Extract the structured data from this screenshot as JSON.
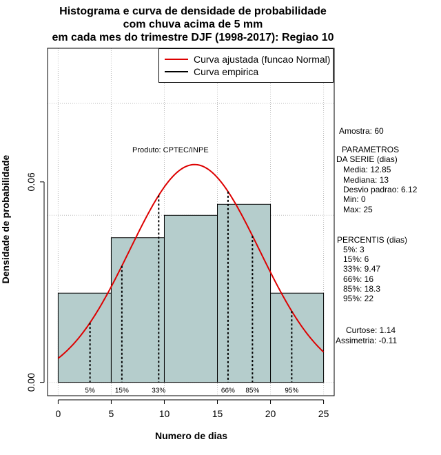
{
  "title": {
    "line1": "Histograma e curva de densidade de probabilidade",
    "line2": "com chuva acima de 5 mm",
    "line3": "em cada mes do trimestre DJF (1998-2017): Regiao 10"
  },
  "colors": {
    "bar_fill": "#b5cdcc",
    "normal_curve": "#dd0000",
    "empirical": "#000000",
    "grid": "#bbbbbb"
  },
  "legend": {
    "normal": "Curva ajustada (funcao Normal)",
    "empirical": "Curva empirica"
  },
  "credit": "Produto: CPTEC/INPE",
  "stats": {
    "amostra": "Amostra: 60",
    "parametros_title": "PARAMETROS",
    "serie_title": "DA SERIE (dias)",
    "media": "Media: 12.85",
    "mediana": "Mediana: 13",
    "desvio": "Desvio padrao: 6.12",
    "min": "Min: 0",
    "max": "Max: 25",
    "percentis_title": "PERCENTIS (dias)",
    "p5": "5%: 3",
    "p15": "15%: 6",
    "p33": "33%: 9.47",
    "p66": "66%: 16",
    "p85": "85%: 18.3",
    "p95": "95%: 22",
    "curtose": "Curtose: 1.14",
    "assimetria": "Assimetria: -0.11"
  },
  "chart_data": {
    "type": "bar",
    "title": "Histograma e curva de densidade de probabilidade com chuva acima de 5 mm em cada mes do trimestre DJF (1998-2017): Regiao 10",
    "xlabel": "Numero de dias",
    "ylabel": "Densidade de probabilidade",
    "xlim": [
      -1,
      26
    ],
    "ylim": [
      -0.004,
      0.1
    ],
    "x_ticks": [
      0,
      5,
      10,
      15,
      20,
      25
    ],
    "x_tick_labels": [
      "0",
      "5",
      "10",
      "15",
      "20",
      "25"
    ],
    "y_ticks": [
      0.0,
      0.06
    ],
    "y_tick_labels": [
      "0.00",
      "0.06"
    ],
    "bins": [
      {
        "from": 0,
        "to": 5,
        "density": 0.0267
      },
      {
        "from": 5,
        "to": 10,
        "density": 0.0433
      },
      {
        "from": 10,
        "to": 15,
        "density": 0.05
      },
      {
        "from": 15,
        "to": 20,
        "density": 0.0533
      },
      {
        "from": 20,
        "to": 25,
        "density": 0.0267
      }
    ],
    "normal_curve": {
      "mean": 12.85,
      "sd": 6.12,
      "from": 0,
      "to": 25
    },
    "percentiles": [
      {
        "label": "5%",
        "value": 3
      },
      {
        "label": "15%",
        "value": 6
      },
      {
        "label": "33%",
        "value": 9.47
      },
      {
        "label": "66%",
        "value": 16
      },
      {
        "label": "85%",
        "value": 18.3
      },
      {
        "label": "95%",
        "value": 22
      }
    ],
    "grid": true,
    "legend_position": "top-right"
  }
}
